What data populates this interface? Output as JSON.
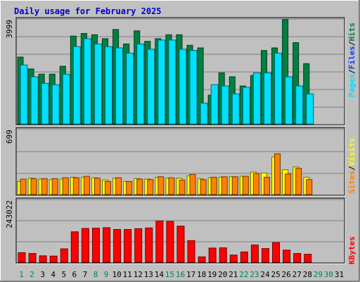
{
  "title": "Daily usage for February 2025",
  "colors": {
    "background": "#c0c0c0",
    "panel": "#c0c0c0",
    "title": "#0000cc",
    "hits": "#008040",
    "files": "#0040ff",
    "pages": "#00e0ff",
    "visits": "#ffff00",
    "sites": "#ff8000",
    "kbytes": "#ff0000",
    "weekday_label": "#000000",
    "weekend_label": "#00805c"
  },
  "legend": {
    "top": {
      "pages": "Pages",
      "files": "Files",
      "hits": "Hits",
      "sep": "/"
    },
    "middle": {
      "sites": "Sites",
      "visits": "Visits",
      "sep": "/"
    },
    "bottom": {
      "kbytes": "KBytes"
    }
  },
  "chart_data": [
    {
      "type": "bar",
      "panel": "hits-files-pages",
      "categories": [
        "1",
        "2",
        "3",
        "4",
        "5",
        "6",
        "7",
        "8",
        "9",
        "10",
        "11",
        "12",
        "13",
        "14",
        "15",
        "16",
        "17",
        "18",
        "19",
        "20",
        "21",
        "22",
        "23",
        "24",
        "25",
        "26",
        "27",
        "28",
        "29",
        "30",
        "31"
      ],
      "ylim": [
        0,
        3999
      ],
      "y_tick_label": "3999",
      "series": [
        {
          "name": "Hits",
          "values": [
            2550,
            2100,
            1900,
            1900,
            2200,
            3350,
            3450,
            3400,
            3250,
            3600,
            3050,
            3550,
            3150,
            3250,
            3400,
            3400,
            3000,
            2900,
            1100,
            1950,
            1800,
            1450,
            1850,
            2800,
            2900,
            3980,
            3100,
            2300,
            null,
            null,
            null
          ]
        },
        {
          "name": "Files",
          "values": [
            null,
            null,
            null,
            null,
            null,
            null,
            null,
            null,
            null,
            null,
            null,
            null,
            null,
            null,
            null,
            null,
            null,
            null,
            null,
            null,
            null,
            null,
            null,
            null,
            null,
            null,
            null,
            null,
            null,
            null,
            null
          ]
        },
        {
          "name": "Pages",
          "values": [
            2250,
            1800,
            1550,
            1500,
            1900,
            2950,
            3250,
            3050,
            2950,
            2900,
            2700,
            3050,
            2850,
            3200,
            3200,
            2850,
            2800,
            800,
            1500,
            1450,
            1150,
            1400,
            1950,
            1950,
            2700,
            1800,
            1450,
            1150,
            null,
            null,
            null
          ]
        }
      ]
    },
    {
      "type": "bar",
      "panel": "visits-sites",
      "categories": [
        "1",
        "2",
        "3",
        "4",
        "5",
        "6",
        "7",
        "8",
        "9",
        "10",
        "11",
        "12",
        "13",
        "14",
        "15",
        "16",
        "17",
        "18",
        "19",
        "20",
        "21",
        "22",
        "23",
        "24",
        "25",
        "26",
        "27",
        "28",
        "29",
        "30",
        "31"
      ],
      "ylim": [
        0,
        699
      ],
      "y_tick_label": "699",
      "series": [
        {
          "name": "Visits",
          "values": [
            140,
            175,
            165,
            160,
            165,
            185,
            185,
            180,
            155,
            175,
            140,
            170,
            165,
            185,
            175,
            175,
            200,
            170,
            180,
            185,
            190,
            195,
            240,
            230,
            400,
            265,
            295,
            185,
            null,
            null,
            null
          ]
        },
        {
          "name": "Sites",
          "values": [
            165,
            170,
            170,
            170,
            180,
            180,
            195,
            175,
            140,
            180,
            140,
            165,
            160,
            190,
            180,
            155,
            215,
            160,
            185,
            190,
            190,
            195,
            225,
            185,
            435,
            220,
            280,
            160,
            null,
            null,
            null
          ]
        }
      ]
    },
    {
      "type": "bar",
      "panel": "kbytes",
      "categories": [
        "1",
        "2",
        "3",
        "4",
        "5",
        "6",
        "7",
        "8",
        "9",
        "10",
        "11",
        "12",
        "13",
        "14",
        "15",
        "16",
        "17",
        "18",
        "19",
        "20",
        "21",
        "22",
        "23",
        "24",
        "25",
        "26",
        "27",
        "28",
        "29",
        "30",
        "31"
      ],
      "ylim": [
        0,
        243022
      ],
      "y_tick_label": "243022",
      "series": [
        {
          "name": "KBytes",
          "values": [
            37000,
            34000,
            25000,
            24000,
            52000,
            118000,
            131000,
            132000,
            134000,
            127000,
            127000,
            130000,
            133000,
            160000,
            158000,
            140000,
            84000,
            21000,
            55000,
            56000,
            28000,
            40000,
            67000,
            53000,
            76000,
            47000,
            34000,
            31000,
            null,
            null,
            null
          ]
        }
      ]
    }
  ]
}
